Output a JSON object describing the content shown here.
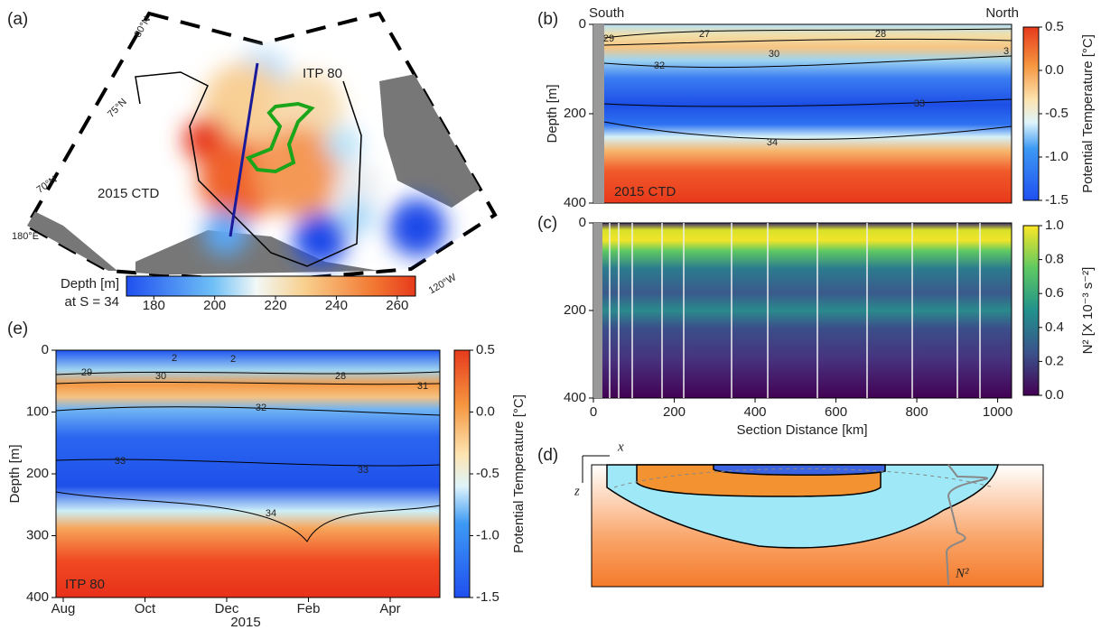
{
  "chart_data": [
    {
      "type": "map",
      "panel": "(a)",
      "annotations": [
        "80°N",
        "75°N",
        "70°N",
        "180°E",
        "120°W",
        "ITP 80",
        "2015 CTD"
      ],
      "colorbar": {
        "label": "Depth [m]",
        "label2": "at S = 34",
        "clim": [
          171,
          266
        ],
        "ticks": [
          180,
          200,
          220,
          240,
          260
        ]
      }
    },
    {
      "type": "heatmap",
      "panel": "(b)",
      "annotations": [
        "South",
        "North",
        "2015 CTD"
      ],
      "ylabel": "Depth [m]",
      "ylim": [
        400,
        0
      ],
      "yticks": [
        0,
        200,
        400
      ],
      "contour_labels": [
        29,
        27,
        30,
        28,
        3,
        32,
        33,
        34
      ],
      "colorbar": {
        "label": "Potential Temperature [°C]",
        "clim": [
          -1.5,
          0.5
        ],
        "ticks": [
          0.5,
          {
            "value": 0,
            "label": "0.0"
          },
          -0.5,
          {
            "value": -1,
            "label": "-1.0"
          },
          -1.5
        ]
      }
    },
    {
      "type": "heatmap",
      "panel": "(c)",
      "xlabel": "Section Distance [km]",
      "xlim": [
        0,
        1030
      ],
      "xticks": [
        0,
        200,
        400,
        600,
        800,
        1000
      ],
      "ylim": [
        400,
        0
      ],
      "yticks": [
        0,
        200,
        400
      ],
      "colorbar": {
        "label": "N² [X 10⁻³ s⁻²]",
        "clim": [
          0,
          1
        ],
        "ticks": [
          {
            "value": 0,
            "label": "0.0"
          },
          0.2,
          0.4,
          0.6,
          0.8,
          {
            "value": 1,
            "label": "1.0"
          }
        ]
      }
    },
    {
      "type": "diagram",
      "panel": "(d)",
      "annotations": [
        "x",
        "z",
        "N²"
      ]
    },
    {
      "type": "heatmap",
      "panel": "(e)",
      "annotations": [
        "ITP 80"
      ],
      "ylabel": "Depth [m]",
      "ylim": [
        400,
        0
      ],
      "yticks": [
        0,
        100,
        200,
        300,
        400
      ],
      "categories": [
        "Aug",
        "Oct",
        "Dec",
        "Feb",
        "Apr"
      ],
      "xlabel": "2015",
      "contour_labels": [
        29,
        30,
        2,
        2,
        28,
        31,
        32,
        33,
        33,
        34
      ],
      "colorbar": {
        "label": "Potential Temperature [°C]",
        "clim": [
          -1.5,
          0.5
        ],
        "ticks": [
          0.5,
          {
            "value": 0,
            "label": "0.0"
          },
          -0.5,
          {
            "value": -1,
            "label": "-1.0"
          },
          -1.5
        ]
      }
    }
  ]
}
